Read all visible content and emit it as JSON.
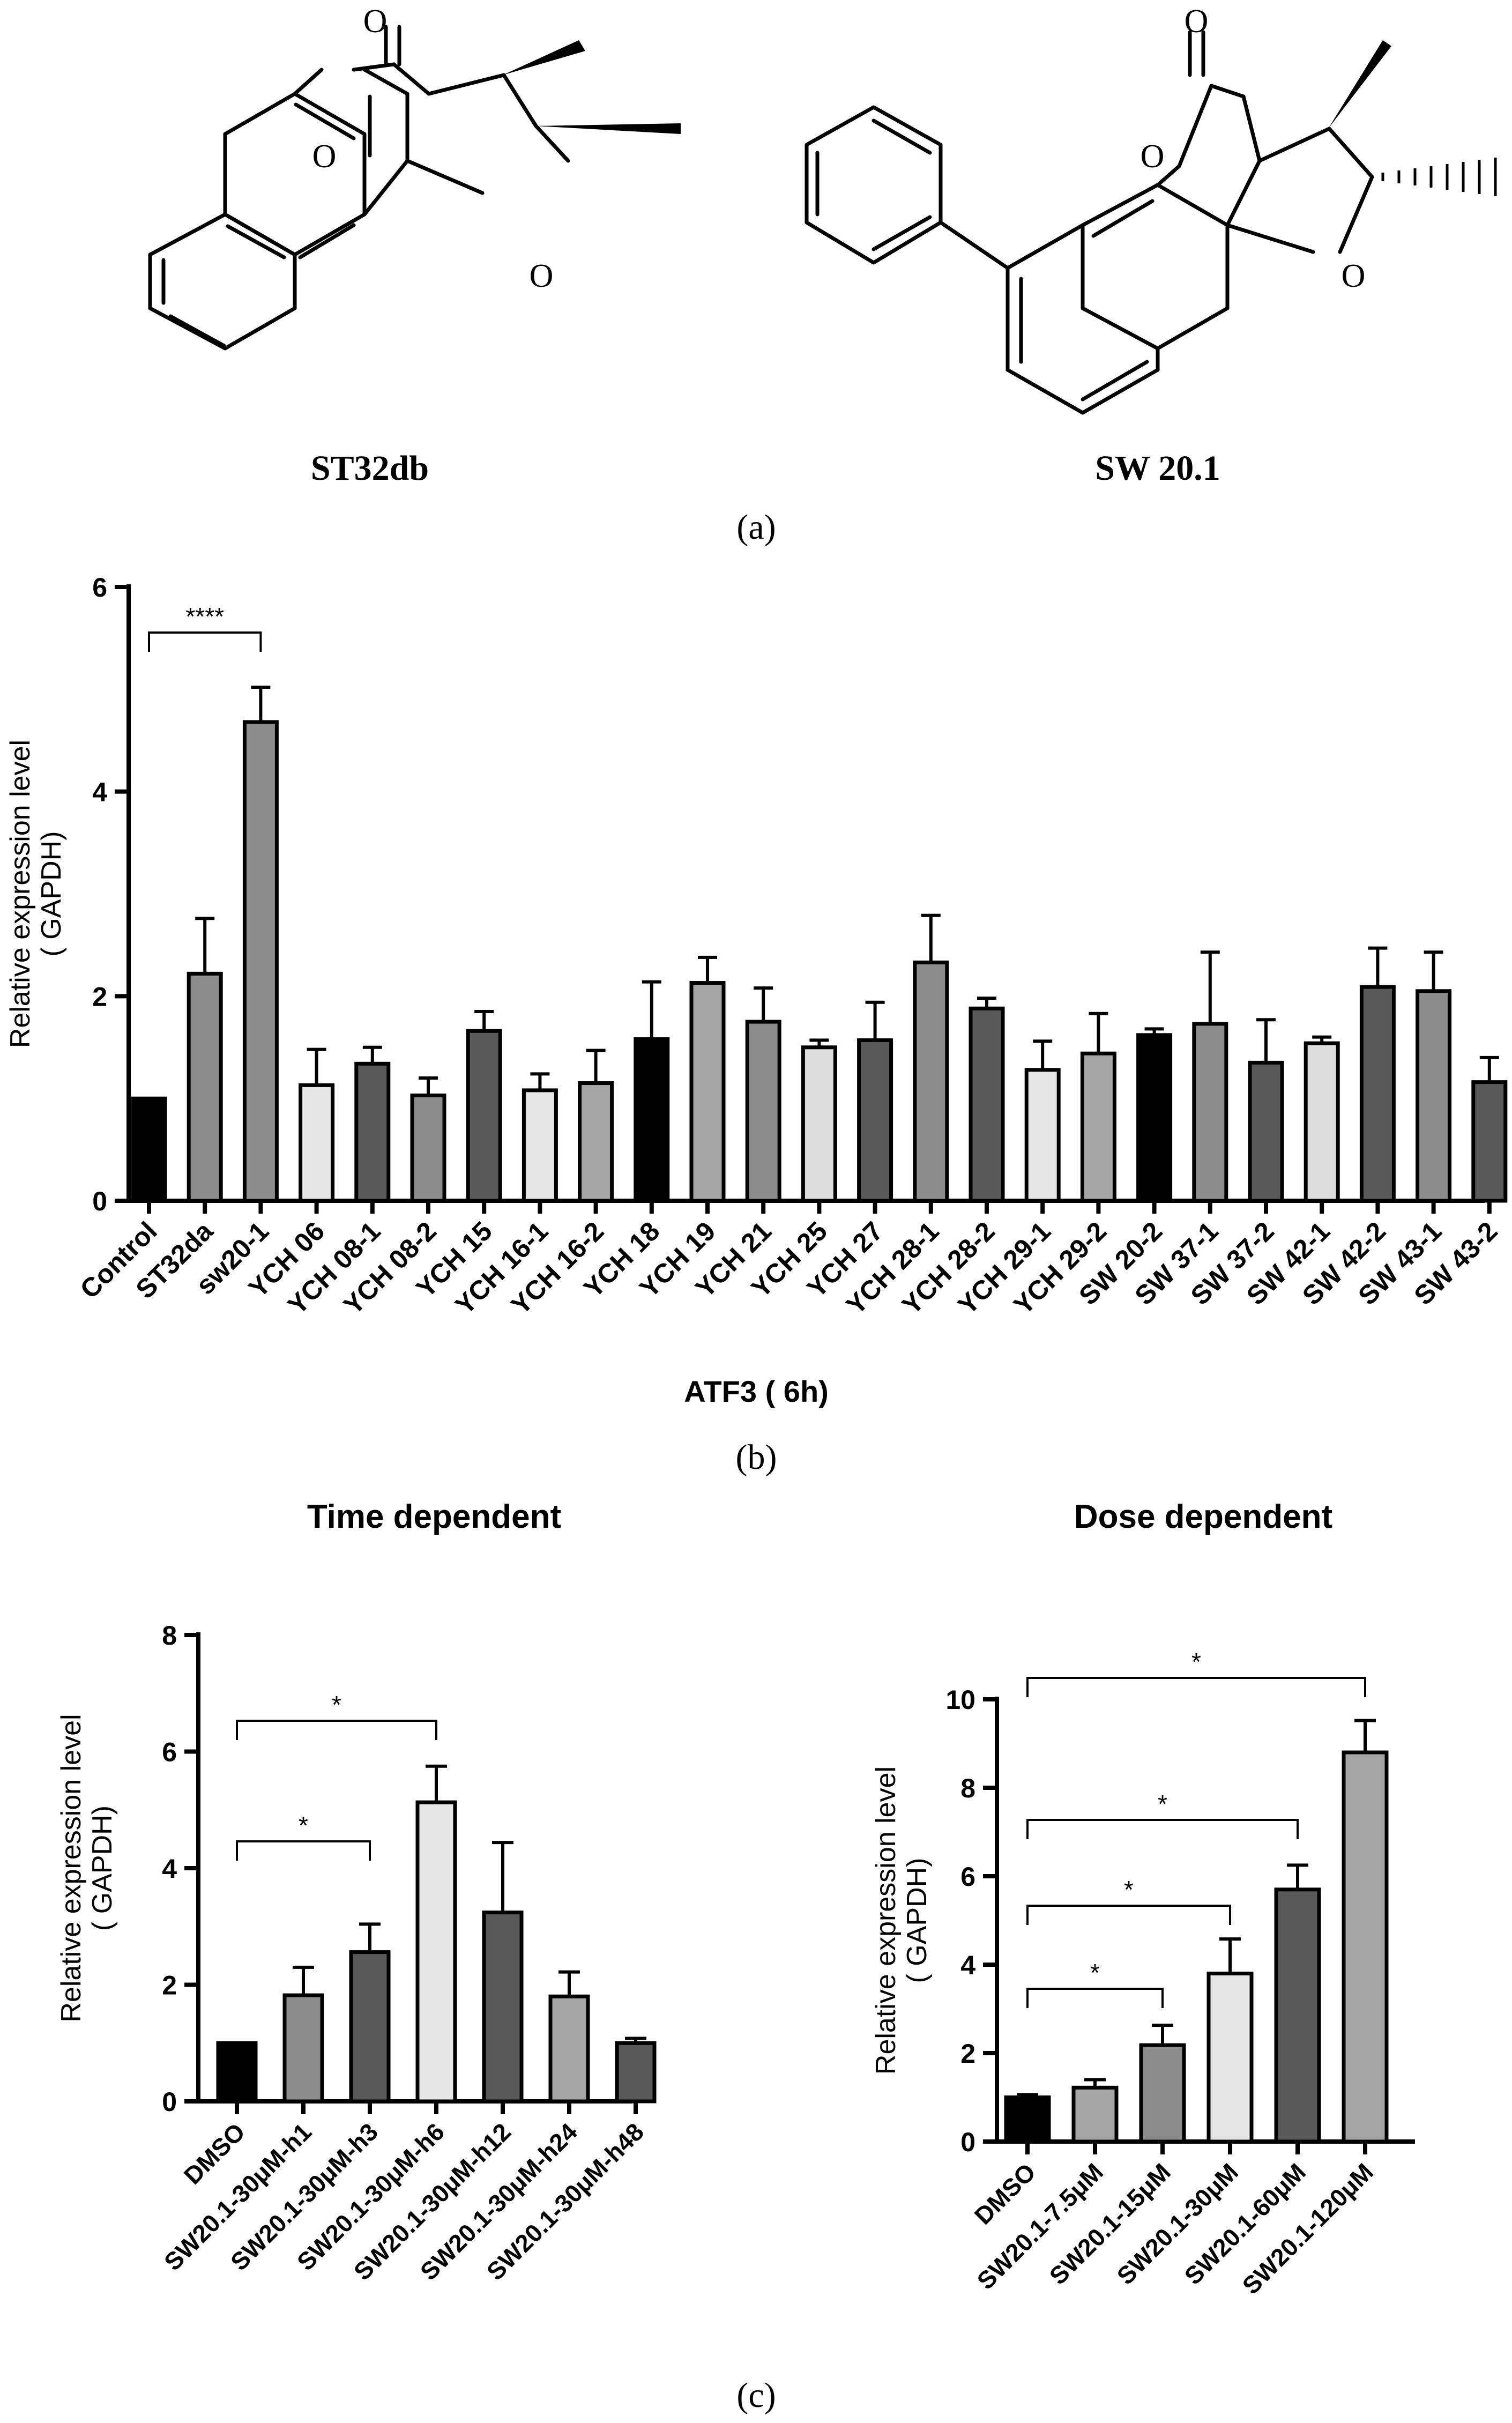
{
  "panel_a": {
    "caption": "(a)",
    "molecules": [
      {
        "name": "ST32db",
        "atoms": [
          "O",
          "O",
          "O"
        ]
      },
      {
        "name": "SW 20.1",
        "atoms": [
          "O",
          "O",
          "O"
        ]
      }
    ]
  },
  "panel_b": {
    "caption": "(b)"
  },
  "panel_c": {
    "caption": "(c)"
  },
  "chart_data": [
    {
      "id": "b",
      "type": "bar",
      "title": "",
      "xlabel": "ATF3 ( 6h)",
      "ylabel": "Relative expression level\n( GAPDH)",
      "ylim": [
        0,
        6
      ],
      "yticks": [
        0,
        2,
        4,
        6
      ],
      "categories": [
        "Control",
        "ST32da",
        "sw20-1",
        "YCH 06",
        "YCH 08-1",
        "YCH 08-2",
        "YCH 15",
        "YCH 16-1",
        "YCH 16-2",
        "YCH 18",
        "YCH 19",
        "YCH 21",
        "YCH 25",
        "YCH 27",
        "YCH 28-1",
        "YCH 28-2",
        "YCH 29-1",
        "YCH 29-2",
        "SW 20-2",
        "SW 37-1",
        "SW 37-2",
        "SW 42-1",
        "SW 42-2",
        "SW 43-1",
        "SW 43-2"
      ],
      "values": [
        1.0,
        2.22,
        4.68,
        1.13,
        1.34,
        1.03,
        1.66,
        1.08,
        1.15,
        1.58,
        2.13,
        1.75,
        1.5,
        1.57,
        2.33,
        1.88,
        1.28,
        1.44,
        1.62,
        1.73,
        1.35,
        1.54,
        2.09,
        2.05,
        1.16
      ],
      "errors": [
        0,
        0.54,
        0.34,
        0.35,
        0.16,
        0.17,
        0.19,
        0.16,
        0.32,
        0.56,
        0.25,
        0.33,
        0.07,
        0.37,
        0.46,
        0.1,
        0.28,
        0.39,
        0.06,
        0.7,
        0.42,
        0.06,
        0.38,
        0.38,
        0.24
      ],
      "colors": [
        "#000000",
        "#8c8c8c",
        "#8c8c8c",
        "#e6e6e6",
        "#595959",
        "#8c8c8c",
        "#595959",
        "#e6e6e6",
        "#a6a6a6",
        "#000000",
        "#a6a6a6",
        "#8c8c8c",
        "#dddddd",
        "#595959",
        "#8c8c8c",
        "#595959",
        "#e6e6e6",
        "#a6a6a6",
        "#000000",
        "#8c8c8c",
        "#595959",
        "#dddddd",
        "#595959",
        "#8c8c8c",
        "#595959"
      ],
      "significance": [
        {
          "from": 0,
          "to": 2,
          "label": "****"
        }
      ]
    },
    {
      "id": "c-time",
      "type": "bar",
      "title": "Time dependent",
      "xlabel": "",
      "ylabel": "Relative expression level\n( GAPDH)",
      "ylim": [
        0,
        8
      ],
      "yticks": [
        0,
        2,
        4,
        6,
        8
      ],
      "categories": [
        "DMSO",
        "SW20.1-30μM-h1",
        "SW20.1-30μM-h3",
        "SW20.1-30μM-h6",
        "SW20.1-30μM-h12",
        "SW20.1-30μM-h24",
        "SW20.1-30μM-h48"
      ],
      "values": [
        1.0,
        1.82,
        2.56,
        5.13,
        3.24,
        1.8,
        1.0
      ],
      "errors": [
        0,
        0.48,
        0.48,
        0.62,
        1.2,
        0.42,
        0.08
      ],
      "colors": [
        "#000000",
        "#8c8c8c",
        "#595959",
        "#e6e6e6",
        "#595959",
        "#a6a6a6",
        "#595959"
      ],
      "significance": [
        {
          "from": 0,
          "to": 3,
          "label": "*"
        },
        {
          "from": 0,
          "to": 2,
          "label": "*"
        }
      ]
    },
    {
      "id": "c-dose",
      "type": "bar",
      "title": "Dose dependent",
      "xlabel": "",
      "ylabel": "Relative expression level\n( GAPDH)",
      "ylim": [
        0,
        10
      ],
      "yticks": [
        0,
        2,
        4,
        6,
        8,
        10
      ],
      "categories": [
        "DMSO",
        "SW20.1-7.5μM",
        "SW20.1-15μM",
        "SW20.1-30μM",
        "SW20.1-60μM",
        "SW20.1-120μM"
      ],
      "values": [
        1.0,
        1.22,
        2.18,
        3.8,
        5.7,
        8.8
      ],
      "errors": [
        0.06,
        0.18,
        0.45,
        0.78,
        0.55,
        0.72
      ],
      "colors": [
        "#000000",
        "#a6a6a6",
        "#8c8c8c",
        "#e6e6e6",
        "#595959",
        "#a6a6a6"
      ],
      "significance": [
        {
          "from": 0,
          "to": 5,
          "label": "*"
        },
        {
          "from": 0,
          "to": 4,
          "label": "*"
        },
        {
          "from": 0,
          "to": 3,
          "label": "*"
        },
        {
          "from": 0,
          "to": 2,
          "label": "*"
        }
      ]
    }
  ]
}
